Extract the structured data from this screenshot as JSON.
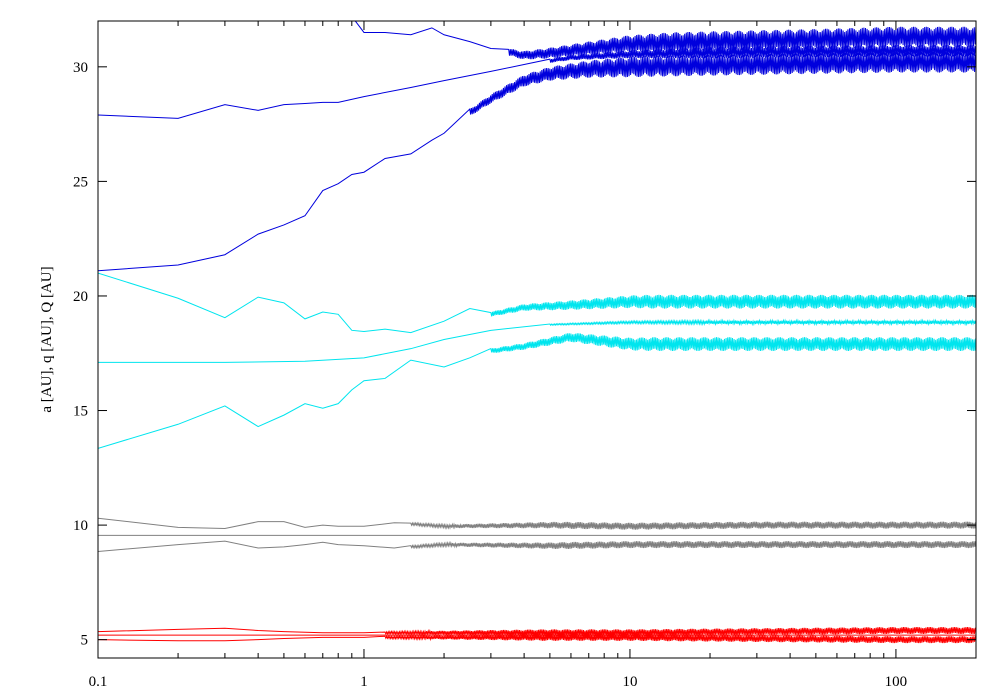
{
  "chart_data": {
    "type": "line",
    "title": "",
    "xlabel": "",
    "ylabel": "a [AU], q [AU], Q [AU]",
    "xscale": "log",
    "xlim": [
      0.1,
      200
    ],
    "ylim": [
      4.2,
      32
    ],
    "grid": false,
    "legend": "none",
    "x_ticks": [
      {
        "value": 0.1,
        "label": "0.1"
      },
      {
        "value": 1,
        "label": "1"
      },
      {
        "value": 10,
        "label": "10"
      },
      {
        "value": 100,
        "label": "100"
      }
    ],
    "y_ticks": [
      {
        "value": 5,
        "label": "5"
      },
      {
        "value": 10,
        "label": "10"
      },
      {
        "value": 15,
        "label": "15"
      },
      {
        "value": 20,
        "label": "20"
      },
      {
        "value": 25,
        "label": "25"
      },
      {
        "value": 30,
        "label": "30"
      }
    ],
    "series": [
      {
        "group": "red",
        "color": "#ff0000",
        "role": "Q",
        "x": [
          0.1,
          0.2,
          0.3,
          0.4,
          0.5,
          0.7,
          1,
          2,
          5,
          10,
          30,
          100,
          200
        ],
        "y": [
          5.35,
          5.45,
          5.5,
          5.4,
          5.35,
          5.3,
          5.3,
          5.3,
          5.3,
          5.3,
          5.35,
          5.4,
          5.4
        ],
        "osc_start": 1.2,
        "osc_amp": 0.15
      },
      {
        "group": "red",
        "color": "#ff0000",
        "role": "a",
        "x": [
          0.1,
          0.3,
          1,
          10,
          200
        ],
        "y": [
          5.2,
          5.2,
          5.2,
          5.2,
          5.2
        ],
        "osc_start": 1000,
        "osc_amp": 0
      },
      {
        "group": "red",
        "color": "#ff0000",
        "role": "q",
        "x": [
          0.1,
          0.2,
          0.3,
          0.4,
          0.5,
          0.7,
          1,
          2,
          5,
          10,
          30,
          100,
          200
        ],
        "y": [
          5.0,
          4.95,
          4.95,
          5.0,
          5.05,
          5.1,
          5.1,
          5.1,
          5.1,
          5.1,
          5.05,
          5.0,
          5.0
        ],
        "osc_start": 1.2,
        "osc_amp": 0.15
      },
      {
        "group": "gray",
        "color": "#808080",
        "role": "Q",
        "x": [
          0.1,
          0.2,
          0.3,
          0.4,
          0.5,
          0.6,
          0.7,
          0.8,
          1,
          1.3,
          2,
          5,
          10,
          30,
          100,
          200
        ],
        "y": [
          10.3,
          9.9,
          9.85,
          10.15,
          10.15,
          9.9,
          10.0,
          9.95,
          9.95,
          10.1,
          9.95,
          10.0,
          9.95,
          10.0,
          10.0,
          10.0
        ],
        "osc_start": 1.5,
        "osc_amp": 0.15
      },
      {
        "group": "gray",
        "color": "#808080",
        "role": "a",
        "x": [
          0.1,
          0.3,
          1,
          10,
          200
        ],
        "y": [
          9.55,
          9.55,
          9.55,
          9.55,
          9.55
        ],
        "osc_start": 1000,
        "osc_amp": 0
      },
      {
        "group": "gray",
        "color": "#808080",
        "role": "q",
        "x": [
          0.1,
          0.2,
          0.3,
          0.4,
          0.5,
          0.6,
          0.7,
          0.8,
          1,
          1.3,
          2,
          5,
          10,
          30,
          100,
          200
        ],
        "y": [
          8.85,
          9.15,
          9.3,
          9.0,
          9.05,
          9.15,
          9.25,
          9.15,
          9.1,
          9.0,
          9.15,
          9.1,
          9.15,
          9.15,
          9.15,
          9.15
        ],
        "osc_start": 1.5,
        "osc_amp": 0.15
      },
      {
        "group": "cyan",
        "color": "#00e5ee",
        "role": "Q",
        "x": [
          0.1,
          0.2,
          0.3,
          0.4,
          0.5,
          0.6,
          0.7,
          0.8,
          0.9,
          1,
          1.2,
          1.5,
          2,
          2.5,
          3,
          4,
          6,
          10,
          30,
          100,
          200
        ],
        "y": [
          21.0,
          19.9,
          19.05,
          19.95,
          19.7,
          19.0,
          19.3,
          19.2,
          18.5,
          18.45,
          18.55,
          18.4,
          18.9,
          19.45,
          19.2,
          19.5,
          19.6,
          19.75,
          19.75,
          19.75,
          19.75
        ],
        "osc_start": 3.0,
        "osc_amp": 0.3
      },
      {
        "group": "cyan",
        "color": "#00e5ee",
        "role": "a",
        "x": [
          0.1,
          0.3,
          0.6,
          1,
          1.5,
          2,
          3,
          5,
          10,
          30,
          100,
          200
        ],
        "y": [
          17.1,
          17.1,
          17.15,
          17.3,
          17.7,
          18.1,
          18.5,
          18.75,
          18.85,
          18.85,
          18.85,
          18.85
        ],
        "osc_start": 5,
        "osc_amp": 0.08
      },
      {
        "group": "cyan",
        "color": "#00e5ee",
        "role": "q",
        "x": [
          0.1,
          0.2,
          0.3,
          0.4,
          0.5,
          0.6,
          0.7,
          0.8,
          0.9,
          1,
          1.2,
          1.5,
          2,
          2.5,
          3,
          4,
          6,
          10,
          30,
          100,
          200
        ],
        "y": [
          13.35,
          14.4,
          15.2,
          14.3,
          14.8,
          15.3,
          15.1,
          15.3,
          15.9,
          16.3,
          16.4,
          17.2,
          16.9,
          17.3,
          17.6,
          17.8,
          18.2,
          17.9,
          17.9,
          17.9,
          17.9
        ],
        "osc_start": 3.0,
        "osc_amp": 0.3
      },
      {
        "group": "blue",
        "color": "#0000dd",
        "role": "Q",
        "x": [
          0.75,
          0.9,
          1,
          1.2,
          1.5,
          1.8,
          2.0,
          2.5,
          3,
          4,
          5,
          7,
          10,
          20,
          50,
          100,
          200
        ],
        "y": [
          32.0,
          32.2,
          31.5,
          31.5,
          31.4,
          31.7,
          31.4,
          31.1,
          30.8,
          30.5,
          30.6,
          30.8,
          31.0,
          31.1,
          31.2,
          31.3,
          31.3
        ],
        "osc_start": 3.5,
        "osc_amp": 0.45
      },
      {
        "group": "blue",
        "color": "#0000dd",
        "role": "a",
        "x": [
          0.1,
          0.2,
          0.3,
          0.4,
          0.5,
          0.6,
          0.7,
          0.8,
          1,
          1.5,
          2,
          3,
          4,
          6,
          10,
          30,
          100,
          200
        ],
        "y": [
          27.9,
          27.75,
          28.35,
          28.1,
          28.35,
          28.4,
          28.45,
          28.45,
          28.7,
          29.1,
          29.4,
          29.8,
          30.1,
          30.4,
          30.55,
          30.65,
          30.7,
          30.7
        ],
        "osc_start": 5,
        "osc_amp": 0.25
      },
      {
        "group": "blue",
        "color": "#0000dd",
        "role": "q",
        "x": [
          0.1,
          0.2,
          0.3,
          0.4,
          0.5,
          0.6,
          0.7,
          0.8,
          0.9,
          1,
          1.2,
          1.5,
          1.8,
          2.0,
          2.5,
          3,
          4,
          5,
          7,
          10,
          30,
          100,
          200
        ],
        "y": [
          21.1,
          21.35,
          21.8,
          22.7,
          23.1,
          23.5,
          24.6,
          24.9,
          25.3,
          25.4,
          26.0,
          26.2,
          26.8,
          27.1,
          28.0,
          28.6,
          29.4,
          29.7,
          29.9,
          30.0,
          30.1,
          30.2,
          30.2
        ],
        "osc_start": 2.5,
        "osc_amp": 0.45
      }
    ]
  }
}
